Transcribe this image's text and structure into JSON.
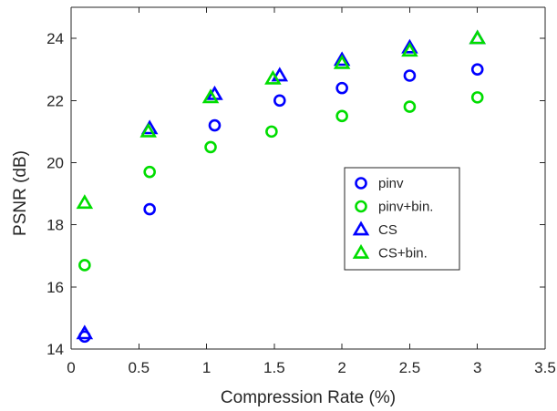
{
  "chart_data": {
    "type": "scatter",
    "title": "",
    "xlabel": "Compression Rate (%)",
    "ylabel": "PSNR (dB)",
    "xlim": [
      0,
      3.5
    ],
    "ylim": [
      14,
      25
    ],
    "x_ticks": [
      0,
      0.5,
      1,
      1.5,
      2,
      2.5,
      3,
      3.5
    ],
    "x_tick_labels": [
      "0",
      "0.5",
      "1",
      "1.5",
      "2",
      "2.5",
      "3",
      "3.5"
    ],
    "y_ticks": [
      14,
      16,
      18,
      20,
      22,
      24
    ],
    "y_tick_labels": [
      "14",
      "16",
      "18",
      "20",
      "22",
      "24"
    ],
    "grid": false,
    "legend_position": "right-middle",
    "series": [
      {
        "name": "pinv",
        "marker": "circle",
        "color": "#0000ff",
        "x": [
          0.1,
          0.58,
          1.06,
          1.54,
          2.0,
          2.5,
          3.0
        ],
        "y": [
          14.4,
          18.5,
          21.2,
          22.0,
          22.4,
          22.8,
          23.0
        ]
      },
      {
        "name": "pinv+bin.",
        "marker": "circle",
        "color": "#00dd00",
        "x": [
          0.1,
          0.58,
          1.03,
          1.48,
          2.0,
          2.5,
          3.0
        ],
        "y": [
          16.7,
          19.7,
          20.5,
          21.0,
          21.5,
          21.8,
          22.1
        ]
      },
      {
        "name": "CS",
        "marker": "triangle",
        "color": "#0000ff",
        "x": [
          0.1,
          0.58,
          1.06,
          1.54,
          2.0,
          2.5,
          3.0
        ],
        "y": [
          14.5,
          21.1,
          22.2,
          22.8,
          23.3,
          23.7,
          24.0
        ]
      },
      {
        "name": "CS+bin.",
        "marker": "triangle",
        "color": "#00dd00",
        "x": [
          0.1,
          0.57,
          1.03,
          1.49,
          2.0,
          2.5,
          3.0
        ],
        "y": [
          18.7,
          21.0,
          22.1,
          22.7,
          23.2,
          23.6,
          24.0
        ]
      }
    ]
  }
}
